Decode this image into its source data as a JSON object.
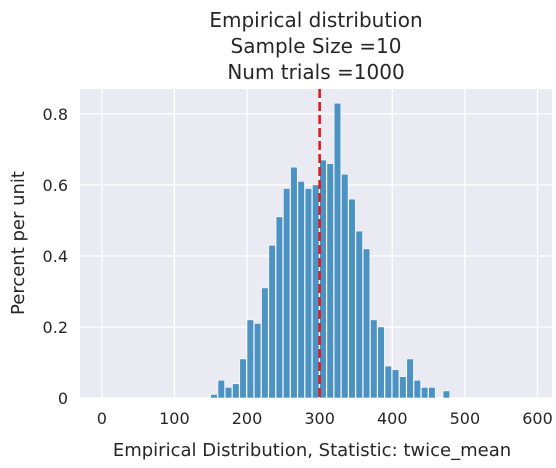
{
  "chart_data": {
    "type": "bar",
    "title_lines": [
      "Empirical distribution",
      "Sample Size =10",
      "Num trials =1000"
    ],
    "xlabel": "Empirical Distribution, Statistic: twice_mean",
    "ylabel": "Percent per unit",
    "xlim": [
      -30,
      620
    ],
    "ylim": [
      0,
      0.87
    ],
    "xticks": [
      0,
      100,
      200,
      300,
      400,
      500,
      600
    ],
    "yticks": [
      0,
      0.2,
      0.4,
      0.6,
      0.8
    ],
    "ytick_labels": [
      "0",
      "0.2",
      "0.4",
      "0.6",
      "0.8"
    ],
    "grid": true,
    "background": "#eaeaf2",
    "bar_color": "#4c92c3",
    "vline": {
      "x": 300,
      "color": "#e31a1c",
      "style": "dashed"
    },
    "bins": {
      "x": [
        150,
        160,
        170,
        180,
        190,
        200,
        210,
        220,
        230,
        240,
        250,
        260,
        270,
        280,
        290,
        300,
        310,
        320,
        330,
        340,
        350,
        360,
        370,
        380,
        390,
        400,
        410,
        420,
        430,
        440,
        450,
        460,
        470,
        480,
        490,
        500,
        510,
        520,
        530,
        540,
        550,
        560,
        570,
        580
      ],
      "width": 10,
      "values": [
        0.01,
        0.05,
        0.03,
        0.04,
        0.11,
        0.22,
        0.21,
        0.31,
        0.43,
        0.51,
        0.59,
        0.65,
        0.61,
        0.59,
        0.6,
        0.67,
        0.66,
        0.83,
        0.63,
        0.56,
        0.47,
        0.42,
        0.22,
        0.2,
        0.09,
        0.08,
        0.06,
        0.11,
        0.05,
        0.03,
        0.03,
        0.0,
        0.02,
        0,
        0,
        0,
        0,
        0,
        0,
        0,
        0,
        0,
        0,
        0
      ]
    }
  }
}
